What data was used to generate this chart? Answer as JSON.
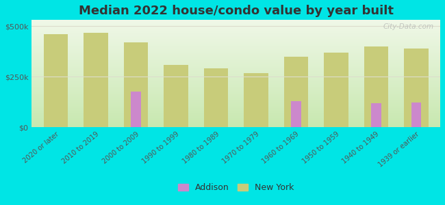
{
  "categories": [
    "2020 or later",
    "2010 to 2019",
    "2000 to 2009",
    "1990 to 1999",
    "1980 to 1989",
    "1970 to 1979",
    "1960 to 1969",
    "1950 to 1959",
    "1940 to 1949",
    "1939 or earlier"
  ],
  "new_york": [
    460000,
    465000,
    420000,
    308000,
    292000,
    268000,
    348000,
    368000,
    400000,
    390000
  ],
  "addison": [
    0,
    0,
    175000,
    0,
    0,
    0,
    128000,
    0,
    118000,
    123000
  ],
  "ny_color": "#c8cc7a",
  "addison_color": "#cc88cc",
  "title": "Median 2022 house/condo value by year built",
  "title_fontsize": 13,
  "ylabel_ticks": [
    "$0",
    "$250k",
    "$500k"
  ],
  "ytick_vals": [
    0,
    250000,
    500000
  ],
  "ylim": [
    0,
    530000
  ],
  "background_color": "#00e5e5",
  "plot_bg_top": "#c8e8b0",
  "plot_bg_bottom": "#f0f8e8",
  "grid_color": "#ddddcc",
  "watermark": "City-Data.com",
  "legend_addison": "Addison",
  "legend_ny": "New York",
  "ny_bar_width": 0.6,
  "addison_bar_width": 0.25
}
